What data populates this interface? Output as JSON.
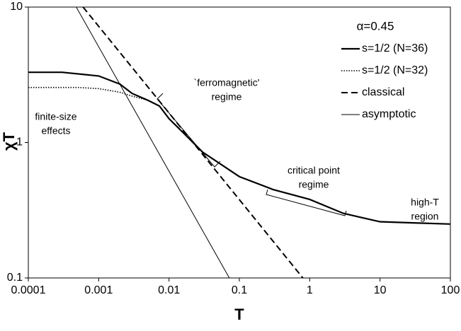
{
  "chart_data": {
    "type": "line",
    "xlabel": "T",
    "ylabel": "χT",
    "xscale": "log",
    "yscale": "log",
    "xlim": [
      0.0001,
      100
    ],
    "ylim": [
      0.1,
      10
    ],
    "xticks": [
      0.0001,
      0.001,
      0.01,
      0.1,
      1,
      10,
      100
    ],
    "yticks": [
      0.1,
      1,
      10
    ],
    "grid": false,
    "legend_title": "α=0.45",
    "legend": "upper right",
    "series": [
      {
        "name": "s=1/2 (N=36)",
        "color": "#000000",
        "style": "solid",
        "width": 2.2,
        "x": [
          0.0001,
          0.0003,
          0.001,
          0.002,
          0.003,
          0.005,
          0.0073,
          0.01,
          0.02,
          0.03,
          0.1,
          0.3,
          1,
          3,
          10,
          30,
          100
        ],
        "values": [
          3.3,
          3.3,
          3.1,
          2.7,
          2.3,
          2.05,
          1.86,
          1.5,
          1.05,
          0.85,
          0.56,
          0.45,
          0.38,
          0.3,
          0.26,
          0.255,
          0.25
        ]
      },
      {
        "name": "s=1/2 (N=32)",
        "color": "#000000",
        "style": "dotted",
        "width": 1.6,
        "x": [
          0.0001,
          0.0005,
          0.001,
          0.002,
          0.003,
          0.005
        ],
        "values": [
          2.55,
          2.55,
          2.5,
          2.35,
          2.2,
          2.05
        ]
      },
      {
        "name": "classical",
        "color": "#000000",
        "style": "dashed",
        "width": 2,
        "x": [
          0.0006,
          0.8
        ],
        "values": [
          10,
          0.1
        ]
      },
      {
        "name": "asymptotic",
        "color": "#000000",
        "style": "thin",
        "width": 1,
        "x": [
          0.00048,
          0.072
        ],
        "values": [
          10,
          0.1
        ]
      }
    ],
    "annotations": [
      {
        "text": [
          "finite-size",
          "effects"
        ]
      },
      {
        "text": [
          "`ferromagnetic'",
          "regime"
        ]
      },
      {
        "text": [
          "critical point",
          "regime"
        ]
      },
      {
        "text": [
          "high-T",
          "region"
        ]
      }
    ]
  }
}
